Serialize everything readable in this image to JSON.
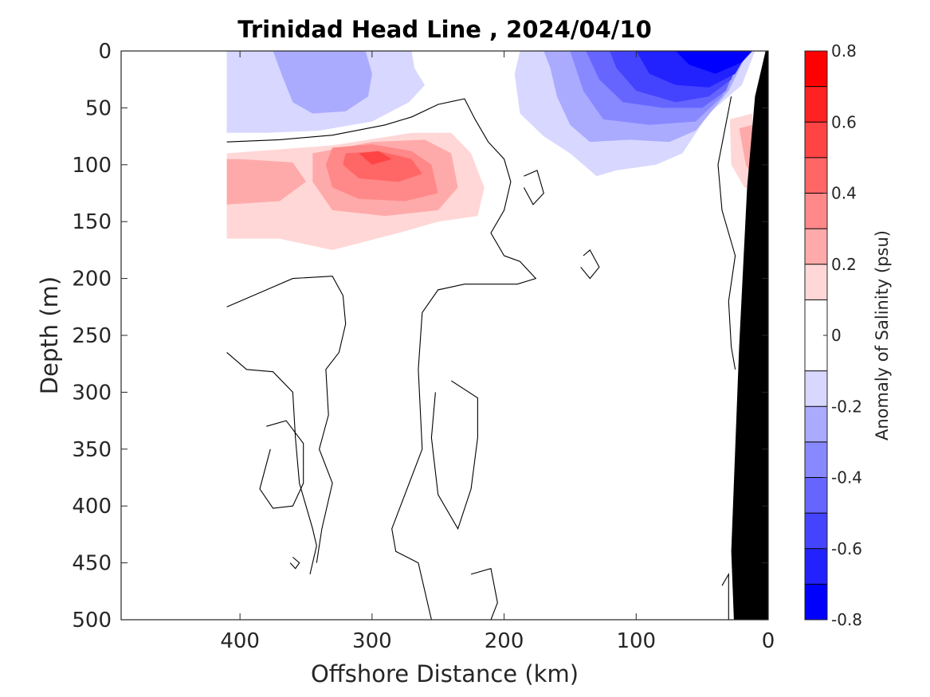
{
  "chart_data": {
    "type": "heatmap",
    "subtype": "filled-contour-section",
    "title": "Trinidad Head Line , 2024/04/10",
    "xlabel": "Offshore Distance (km)",
    "ylabel": "Depth (m)",
    "xlim": [
      490,
      0
    ],
    "ylim": [
      0,
      500
    ],
    "x_reversed": true,
    "y_reversed": true,
    "x_ticks": [
      400,
      300,
      200,
      100,
      0
    ],
    "y_ticks": [
      0,
      50,
      100,
      150,
      200,
      250,
      300,
      350,
      400,
      450,
      500
    ],
    "colorbar": {
      "label": "Anomaly of Salinity (psu)",
      "range": [
        -0.8,
        0.8
      ],
      "ticks": [
        "0.8",
        "0.6",
        "0.4",
        "0.2",
        "0",
        "-0.2",
        "-0.4",
        "-0.6",
        "-0.8"
      ],
      "levels": [
        -0.8,
        -0.7,
        -0.6,
        -0.5,
        -0.4,
        -0.3,
        -0.2,
        -0.1,
        0.1,
        0.2,
        0.3,
        0.4,
        0.5,
        0.6,
        0.7,
        0.8
      ],
      "colors": [
        "#0000ff",
        "#2222ff",
        "#4444ff",
        "#6666ff",
        "#8888ff",
        "#aaaaff",
        "#d7d7ff",
        "#ffffff",
        "#ffd7d7",
        "#ffaaaa",
        "#ff8888",
        "#ff6666",
        "#ff4444",
        "#ff2222",
        "#ff0000"
      ]
    },
    "data_extent_km": [
      410,
      0
    ],
    "zero_contour_color": "#000000",
    "bathymetry_color": "#000000",
    "features": [
      {
        "name": "surface-fresh-anomaly-offshore",
        "sign": "negative",
        "range_km": [
          410,
          270
        ],
        "depth_m": [
          0,
          70
        ],
        "min_value": -0.3
      },
      {
        "name": "surface-fresh-anomaly-nearshore",
        "sign": "negative",
        "range_km": [
          190,
          10
        ],
        "depth_m": [
          0,
          110
        ],
        "min_value": -0.7
      },
      {
        "name": "subsurface-salty-core",
        "sign": "positive",
        "range_km": [
          410,
          220
        ],
        "depth_m": [
          60,
          170
        ],
        "max_value": 0.5
      },
      {
        "name": "nearshore-salty-anomaly",
        "sign": "positive",
        "range_km": [
          30,
          10
        ],
        "depth_m": [
          50,
          120
        ],
        "max_value": 0.4
      }
    ]
  }
}
